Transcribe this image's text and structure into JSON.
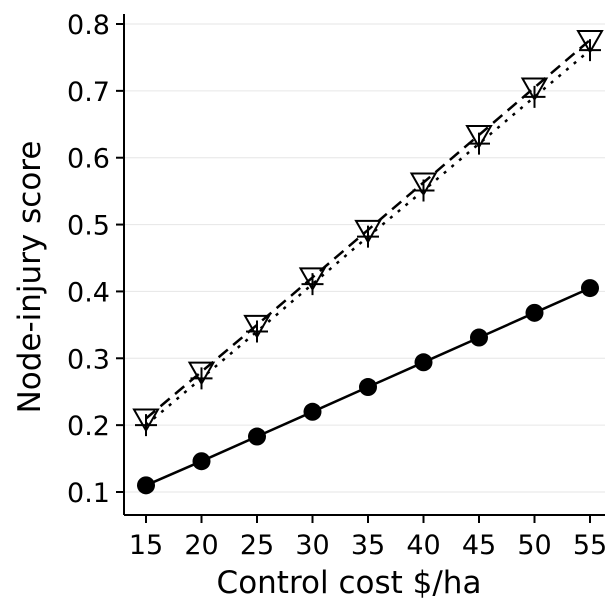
{
  "chart_data": {
    "type": "line",
    "xlabel": "Control cost $/ha",
    "ylabel": "Node-injury score",
    "xlim": [
      15,
      55
    ],
    "ylim": [
      0.1,
      0.8
    ],
    "xticks": [
      15,
      20,
      25,
      30,
      35,
      40,
      45,
      50,
      55
    ],
    "yticks": [
      0.1,
      0.2,
      0.3,
      0.4,
      0.5,
      0.6,
      0.7,
      0.8
    ],
    "grid": "horizontal",
    "legend": "none",
    "x": [
      15,
      20,
      25,
      30,
      35,
      40,
      45,
      50,
      55
    ],
    "series": [
      {
        "line_style": "solid",
        "marker": "filled-circle",
        "color": "#000000",
        "values": [
          0.11,
          0.146,
          0.183,
          0.22,
          0.257,
          0.294,
          0.331,
          0.368,
          0.405
        ]
      },
      {
        "line_style": "dashed",
        "marker": "open-triangle-down",
        "color": "#000000",
        "values": [
          0.21,
          0.28,
          0.35,
          0.421,
          0.492,
          0.563,
          0.634,
          0.705,
          0.776
        ]
      },
      {
        "line_style": "dotted",
        "marker": "plus",
        "color": "#000000",
        "values": [
          0.2,
          0.27,
          0.34,
          0.411,
          0.482,
          0.551,
          0.621,
          0.691,
          0.761
        ]
      }
    ]
  }
}
